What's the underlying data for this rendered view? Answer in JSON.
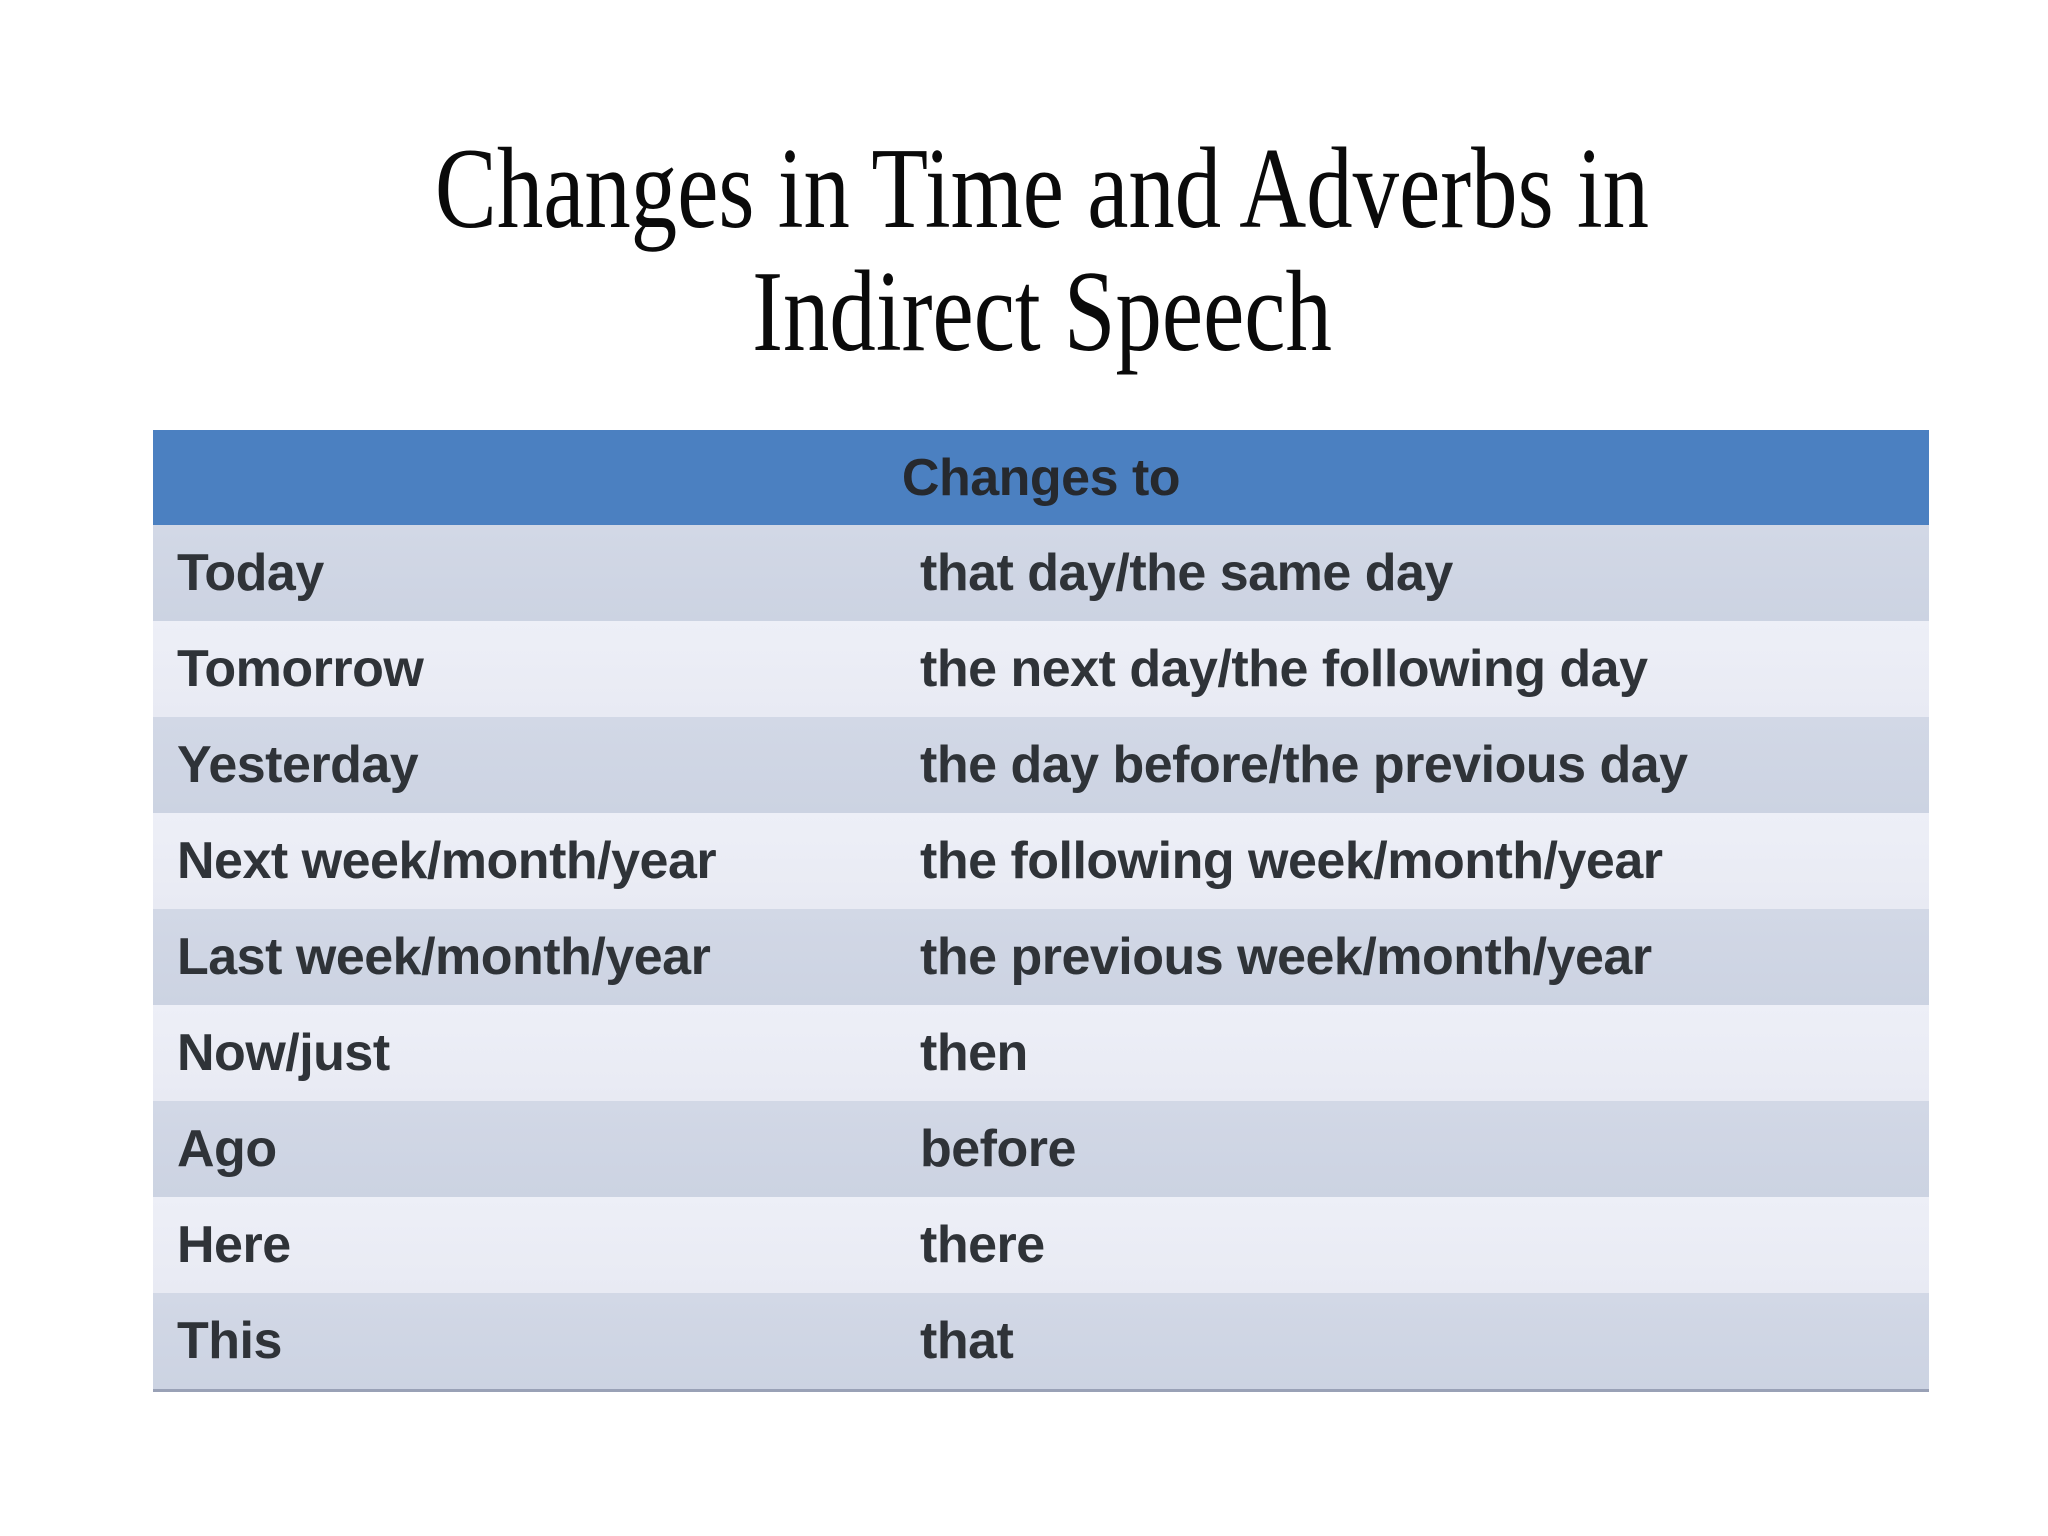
{
  "title": {
    "line1": "Changes in Time and Adverbs in",
    "line2": "Indirect Speech"
  },
  "table": {
    "header": "Changes to",
    "rows": [
      {
        "term": "Today",
        "changes_to": "that day/the same day"
      },
      {
        "term": "Tomorrow",
        "changes_to": "the next day/the following day"
      },
      {
        "term": "Yesterday",
        "changes_to": "the day before/the previous day"
      },
      {
        "term": "Next week/month/year",
        "changes_to": "the following week/month/year"
      },
      {
        "term": "Last week/month/year",
        "changes_to": "the previous week/month/year"
      },
      {
        "term": "Now/just",
        "changes_to": "then"
      },
      {
        "term": "Ago",
        "changes_to": "before"
      },
      {
        "term": "Here",
        "changes_to": "there"
      },
      {
        "term": "This",
        "changes_to": "that"
      }
    ]
  },
  "colors": {
    "page_bg": "#ffffff",
    "title_text": "#0a0a0a",
    "header_bg": "#4b80c1",
    "header_text": "#26292e",
    "row_dark": "#ccd3e2",
    "row_dark_top": "#d2d8e6",
    "row_light": "#e8eaf3",
    "row_light_top": "#edeff7",
    "body_text": "#2f3338",
    "table_border": "#99a1b6"
  }
}
